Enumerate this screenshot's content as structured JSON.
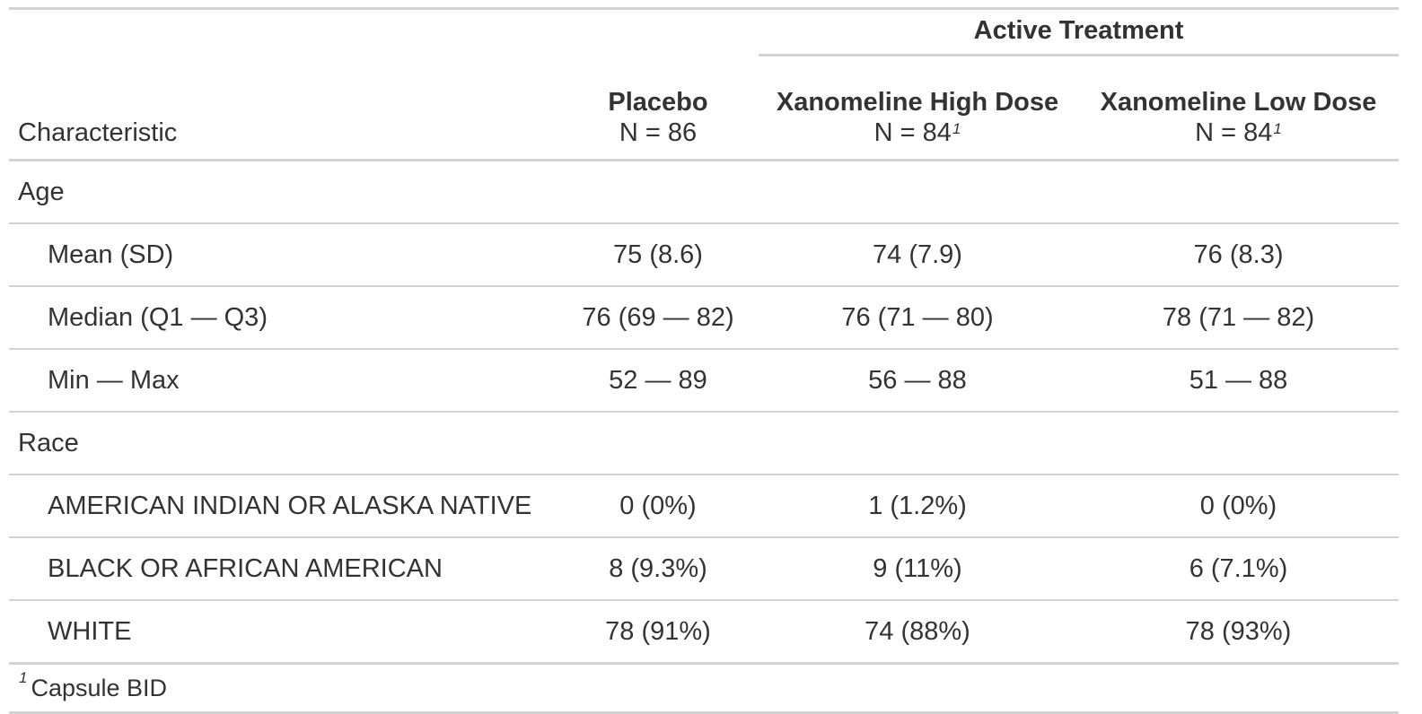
{
  "header": {
    "spanner_label": "Active Treatment",
    "characteristic_label": "Characteristic",
    "columns": [
      {
        "name": "Placebo",
        "n": "N = 86",
        "footnote_mark": ""
      },
      {
        "name": "Xanomeline High Dose",
        "n": "N = 84",
        "footnote_mark": "1"
      },
      {
        "name": "Xanomeline Low Dose",
        "n": "N = 84",
        "footnote_mark": "1"
      }
    ]
  },
  "groups": [
    {
      "label": "Age",
      "rows": [
        {
          "label": "Mean (SD)",
          "values": [
            "75 (8.6)",
            "74 (7.9)",
            "76 (8.3)"
          ]
        },
        {
          "label": "Median (Q1 — Q3)",
          "values": [
            "76 (69 — 82)",
            "76 (71 — 80)",
            "78 (71 — 82)"
          ]
        },
        {
          "label": "Min — Max",
          "values": [
            "52 — 89",
            "56 — 88",
            "51 — 88"
          ]
        }
      ]
    },
    {
      "label": "Race",
      "rows": [
        {
          "label": "AMERICAN INDIAN OR ALASKA NATIVE",
          "values": [
            "0 (0%)",
            "1 (1.2%)",
            "0 (0%)"
          ]
        },
        {
          "label": "BLACK OR AFRICAN AMERICAN",
          "values": [
            "8 (9.3%)",
            "9 (11%)",
            "6 (7.1%)"
          ]
        },
        {
          "label": "WHITE",
          "values": [
            "78 (91%)",
            "74 (88%)",
            "78 (93%)"
          ]
        }
      ]
    }
  ],
  "footnote": {
    "mark": "1",
    "text": "Capsule BID"
  }
}
